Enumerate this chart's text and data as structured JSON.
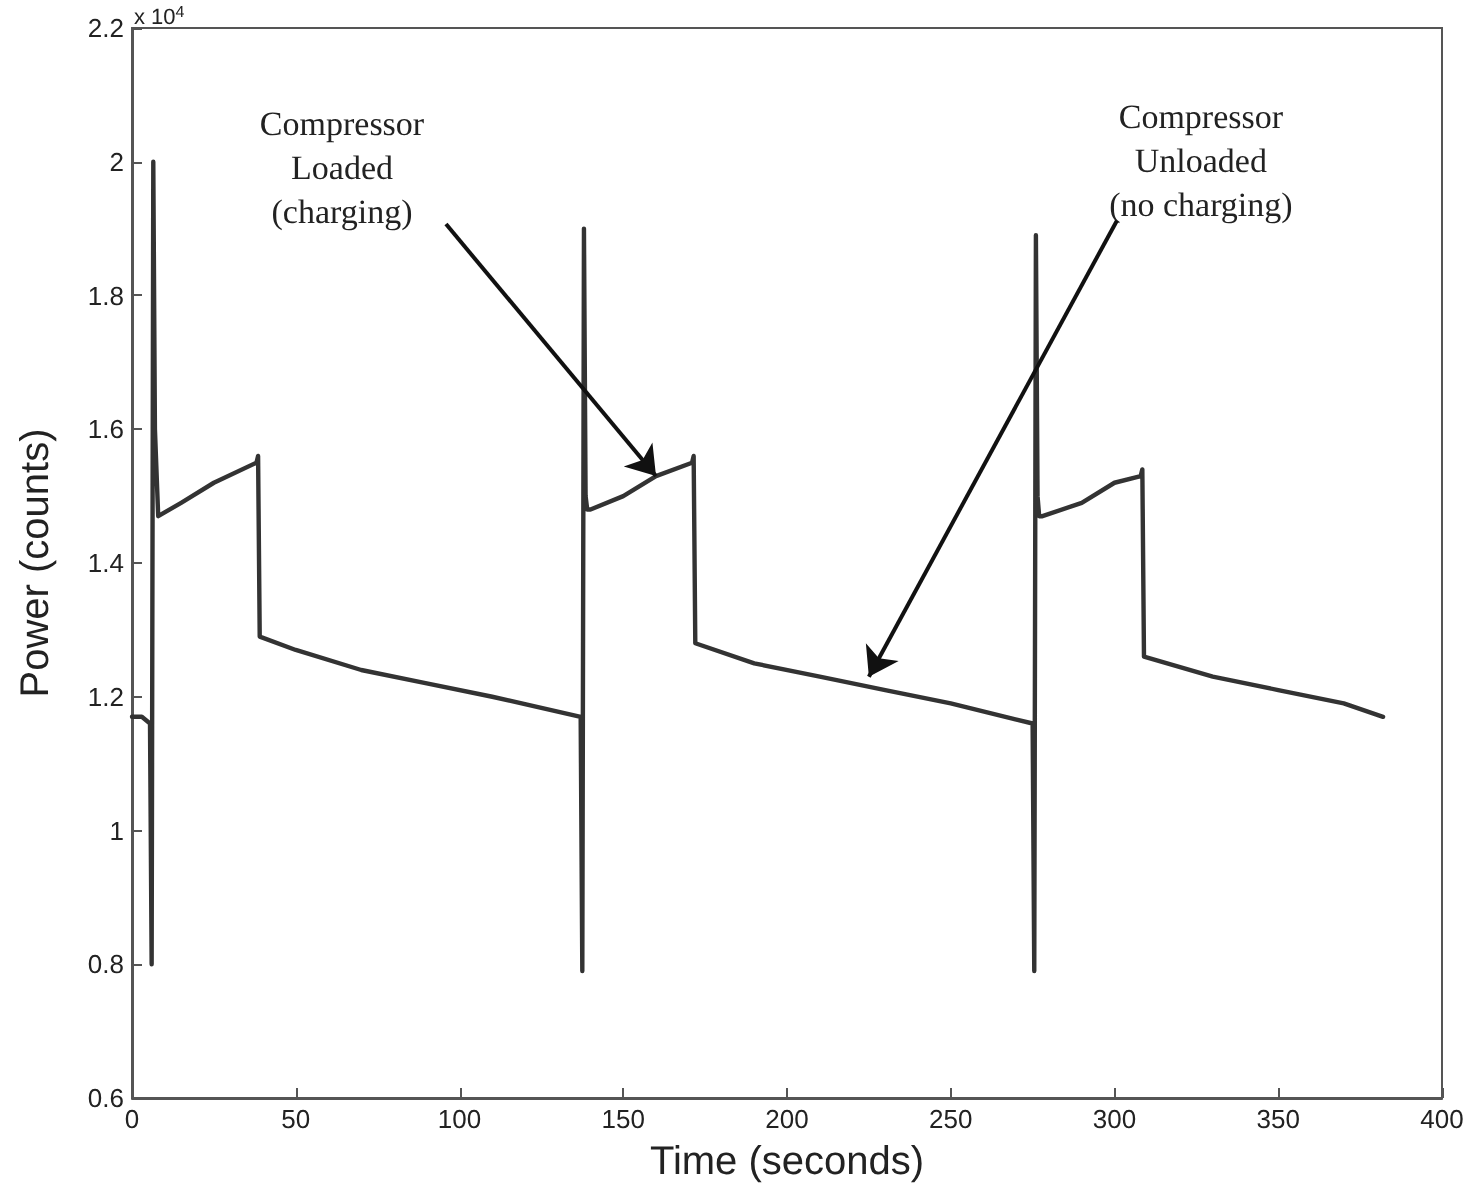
{
  "chart_data": {
    "type": "line",
    "xlabel": "Time (seconds)",
    "ylabel": "Power (counts)",
    "x": [
      0,
      3,
      5.5,
      6,
      6.5,
      7,
      8,
      15,
      25,
      38,
      38.5,
      39,
      50,
      70,
      90,
      110,
      137,
      137.5,
      138,
      138.5,
      139,
      140,
      150,
      160,
      171,
      171.5,
      172,
      190,
      210,
      230,
      250,
      275,
      275.5,
      276,
      276.5,
      277,
      278,
      290,
      300,
      308,
      308.5,
      309,
      330,
      350,
      370,
      382
    ],
    "series": [
      {
        "color": "#333333",
        "values": [
          1.17,
          1.17,
          1.16,
          0.8,
          2.0,
          1.6,
          1.47,
          1.49,
          1.52,
          1.55,
          1.56,
          1.29,
          1.27,
          1.24,
          1.22,
          1.2,
          1.17,
          0.79,
          1.9,
          1.5,
          1.48,
          1.48,
          1.5,
          1.53,
          1.55,
          1.56,
          1.28,
          1.25,
          1.23,
          1.21,
          1.19,
          1.16,
          0.79,
          1.89,
          1.5,
          1.47,
          1.47,
          1.49,
          1.52,
          1.53,
          1.54,
          1.26,
          1.23,
          1.21,
          1.19,
          1.17
        ]
      }
    ],
    "xlim": [
      0,
      400
    ],
    "xticks": [
      0,
      50,
      100,
      150,
      200,
      250,
      300,
      350,
      400
    ],
    "ylim": [
      0.6,
      2.2
    ],
    "yticks": [
      0.6,
      0.8,
      1,
      1.2,
      1.4,
      1.6,
      1.8,
      2,
      2.2
    ],
    "grid": false,
    "marker": "none",
    "line_style": "solid",
    "annotations": [
      "x 10$^{4}$",
      {
        "text": "Compressor\nLoaded\n(charging)",
        "x": 160,
        "y": 1.53
      },
      {
        "text": "Compressor\nUnloaded\n(no charging)",
        "x": 225,
        "y": 1.23
      }
    ]
  }
}
